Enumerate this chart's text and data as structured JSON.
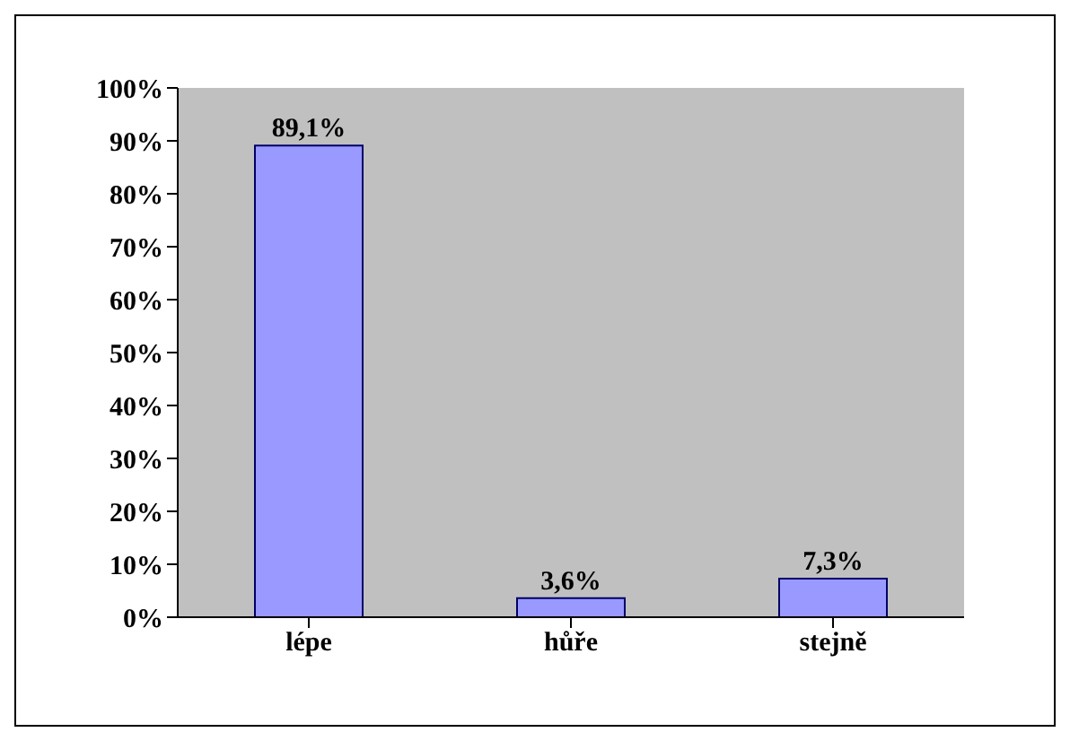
{
  "chart_data": {
    "type": "bar",
    "categories": [
      "lépe",
      "hůře",
      "stejně"
    ],
    "values": [
      89.1,
      3.6,
      7.3
    ],
    "value_labels": [
      "89,1%",
      "3,6%",
      "7,3%"
    ],
    "color": "#9999ff",
    "ylim": [
      0,
      100
    ],
    "yticks": [
      {
        "value": 0,
        "label": "0%"
      },
      {
        "value": 10,
        "label": "10%"
      },
      {
        "value": 20,
        "label": "20%"
      },
      {
        "value": 30,
        "label": "30%"
      },
      {
        "value": 40,
        "label": "40%"
      },
      {
        "value": 50,
        "label": "50%"
      },
      {
        "value": 60,
        "label": "60%"
      },
      {
        "value": 70,
        "label": "70%"
      },
      {
        "value": 80,
        "label": "80%"
      },
      {
        "value": 90,
        "label": "90%"
      },
      {
        "value": 100,
        "label": "100%"
      }
    ],
    "grid": false
  }
}
